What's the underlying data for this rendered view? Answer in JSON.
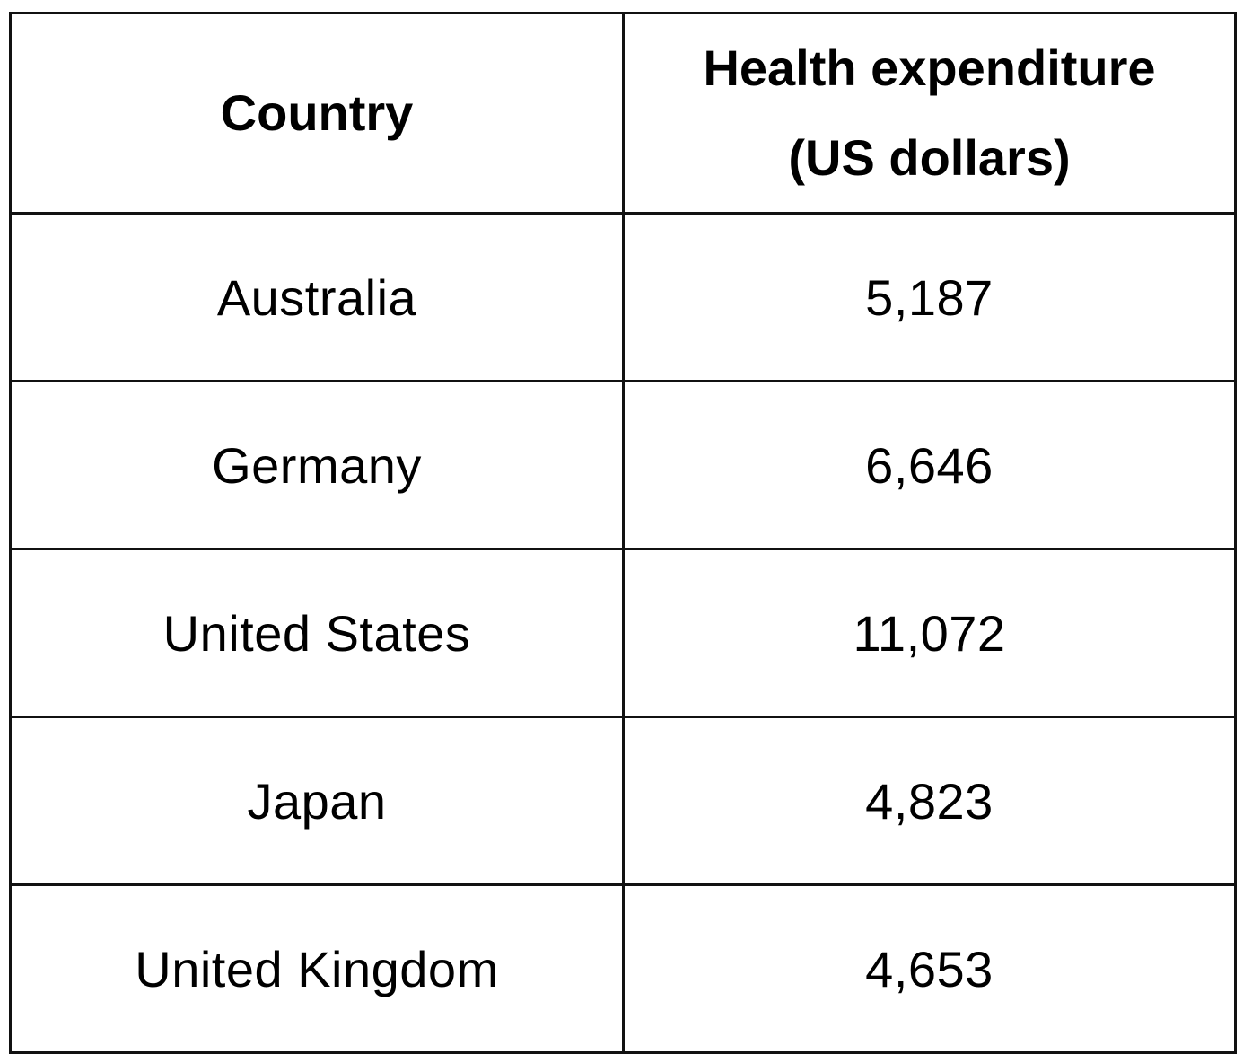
{
  "table": {
    "headers": {
      "country": "Country",
      "expenditure_line1": "Health expenditure",
      "expenditure_line2": "(US dollars)"
    },
    "rows": [
      {
        "country": "Australia",
        "expenditure": "5,187"
      },
      {
        "country": "Germany",
        "expenditure": "6,646"
      },
      {
        "country": "United States",
        "expenditure": "11,072"
      },
      {
        "country": "Japan",
        "expenditure": "4,823"
      },
      {
        "country": "United Kingdom",
        "expenditure": "4,653"
      }
    ]
  },
  "colors": {
    "border": "#111111",
    "text": "#000000",
    "background": "#ffffff"
  }
}
